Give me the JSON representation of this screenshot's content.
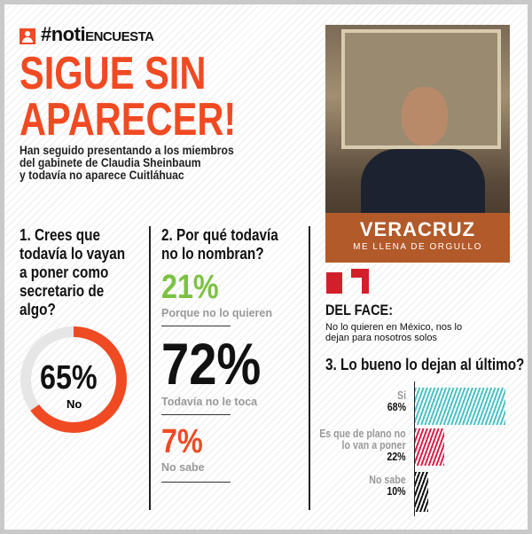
{
  "header": {
    "brand_prefix": "#noti",
    "brand_suffix": "ENCUESTA",
    "brand_icon": "user-icon",
    "title_line1": "SIGUE SIN",
    "title_line2": "APARECER!",
    "subtitle": [
      "Han seguido presentando a los miembros",
      "del gabinete de Claudia Sheinbaum",
      "y todavía no aparece Cuitláhuac"
    ]
  },
  "photo": {
    "sign_title": "VERACRUZ",
    "sign_subtitle": "ME LLENA DE ORGULLO"
  },
  "colors": {
    "accent": "#f04a23",
    "green": "#7cc242",
    "teal": "#4cc1c4",
    "crimson": "#d8214a",
    "gray": "#e6e6e6"
  },
  "quote": {
    "source": "DEL FACE:",
    "text": [
      "No lo quieren en México, nos lo",
      "dejan para nosotros solos"
    ]
  },
  "chart_data": [
    {
      "type": "pie",
      "title": "1. Crees que todavía lo vayan a poner como secretario de algo?",
      "title_lines": [
        "1. Crees que",
        "todavía lo vayan",
        "a poner como",
        "secretario de",
        "algo?"
      ],
      "values": [
        65,
        35
      ],
      "value_label": "65%",
      "label": "No",
      "series_colors": [
        "#f04a23",
        "#e6e6e6"
      ]
    },
    {
      "type": "table",
      "title": "2. Por qué todavía no lo nombran?",
      "title_lines": [
        "2. Por qué todavía",
        "no lo nombran?"
      ],
      "rows": [
        {
          "value": "21%",
          "label": "Porque no lo quieren",
          "color": "#7cc242"
        },
        {
          "value": "72%",
          "label": "Todavía no le toca",
          "color": "#111111"
        },
        {
          "value": "7%",
          "label": "No sabe",
          "color": "#f04a23"
        }
      ]
    },
    {
      "type": "bar",
      "orientation": "horizontal",
      "title": "3. Lo bueno lo dejan al último?",
      "categories": [
        "Si",
        "Es que de plano no lo van a poner",
        "No sabe"
      ],
      "category_lines": [
        [
          "Si"
        ],
        [
          "Es que de plano no",
          "lo van a poner"
        ],
        [
          "No sabe"
        ]
      ],
      "values": [
        68,
        22,
        10
      ],
      "value_labels": [
        "68%",
        "22%",
        "10%"
      ],
      "colors": [
        "#4cc1c4",
        "#d8214a",
        "#111111"
      ]
    }
  ]
}
